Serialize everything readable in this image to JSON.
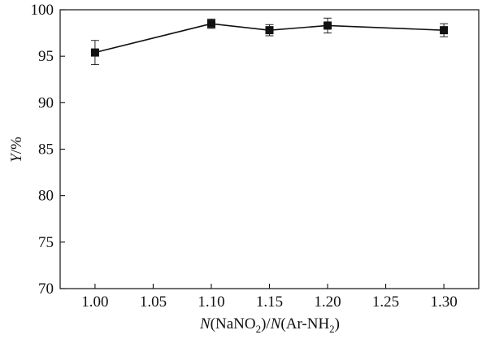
{
  "chart_data": {
    "type": "line",
    "x": [
      1.0,
      1.1,
      1.15,
      1.2,
      1.3
    ],
    "series": [
      {
        "values": [
          95.4,
          98.5,
          97.8,
          98.3,
          97.8
        ],
        "errors": [
          1.3,
          0.5,
          0.6,
          0.8,
          0.7
        ],
        "marker": "square",
        "color": "#111111"
      }
    ],
    "xticks": [
      "1.00",
      "1.05",
      "1.10",
      "1.15",
      "1.20",
      "1.25",
      "1.30"
    ],
    "yticks": [
      "70",
      "75",
      "80",
      "85",
      "90",
      "95",
      "100"
    ],
    "xlim": [
      0.97,
      1.33
    ],
    "ylim": [
      70,
      100
    ],
    "xlabel": {
      "pre": "N",
      "open": "(NaNO",
      "sub1": "2",
      "mid": ")/",
      "n2": "N",
      "open2": "(Ar-NH",
      "sub2": "2",
      "close": ")"
    },
    "ylabel": {
      "var": "Y",
      "unit": "/%"
    },
    "grid": false,
    "legend": "none"
  }
}
